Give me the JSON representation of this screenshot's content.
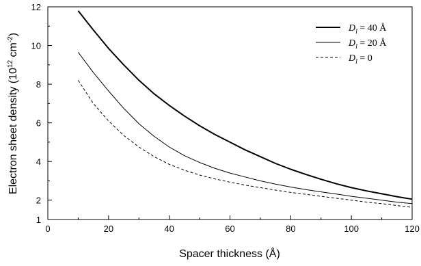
{
  "chart_data": {
    "type": "line",
    "xlabel": "Spacer thickness (Å)",
    "ylabel": {
      "prefix": "Electron sheet density (10",
      "exp1": "12",
      "mid": " cm",
      "exp2": "-2",
      "suffix": ")"
    },
    "xlim": [
      0,
      120
    ],
    "ylim": [
      1,
      12
    ],
    "x_ticks": [
      0,
      20,
      40,
      60,
      80,
      100,
      120
    ],
    "y_ticks": [
      1,
      2,
      4,
      6,
      8,
      10,
      12
    ],
    "grid": false,
    "legend_position": "top-right",
    "series": [
      {
        "name": "D_l = 40 Å",
        "label_var": "D",
        "label_sub": "l",
        "label_rest": " = 40 Å",
        "style": "thick",
        "x": [
          10,
          15,
          20,
          25,
          30,
          35,
          40,
          45,
          50,
          55,
          60,
          65,
          70,
          75,
          80,
          85,
          90,
          95,
          100,
          105,
          110,
          115,
          120
        ],
        "y": [
          11.8,
          10.8,
          9.85,
          9.0,
          8.2,
          7.5,
          6.9,
          6.35,
          5.85,
          5.4,
          5.0,
          4.6,
          4.25,
          3.9,
          3.6,
          3.33,
          3.08,
          2.85,
          2.65,
          2.48,
          2.33,
          2.18,
          2.05
        ]
      },
      {
        "name": "D_l = 20 Å",
        "label_var": "D",
        "label_sub": "l",
        "label_rest": " = 20 Å",
        "style": "thin",
        "x": [
          10,
          15,
          20,
          25,
          30,
          35,
          40,
          45,
          50,
          55,
          60,
          65,
          70,
          75,
          80,
          85,
          90,
          95,
          100,
          105,
          110,
          115,
          120
        ],
        "y": [
          9.65,
          8.6,
          7.65,
          6.75,
          5.95,
          5.3,
          4.75,
          4.3,
          3.95,
          3.65,
          3.4,
          3.2,
          3.0,
          2.83,
          2.68,
          2.55,
          2.43,
          2.32,
          2.2,
          2.1,
          2.0,
          1.9,
          1.82
        ]
      },
      {
        "name": "D_l = 0",
        "label_var": "D",
        "label_sub": "l",
        "label_rest": " = 0",
        "style": "dashed",
        "x": [
          10,
          15,
          20,
          25,
          30,
          35,
          40,
          45,
          50,
          55,
          60,
          65,
          70,
          75,
          80,
          85,
          90,
          95,
          100,
          105,
          110,
          115,
          120
        ],
        "y": [
          8.2,
          7.0,
          6.1,
          5.35,
          4.75,
          4.25,
          3.85,
          3.55,
          3.3,
          3.1,
          2.93,
          2.78,
          2.65,
          2.52,
          2.4,
          2.3,
          2.2,
          2.1,
          2.0,
          1.9,
          1.82,
          1.72,
          1.63
        ]
      }
    ]
  }
}
